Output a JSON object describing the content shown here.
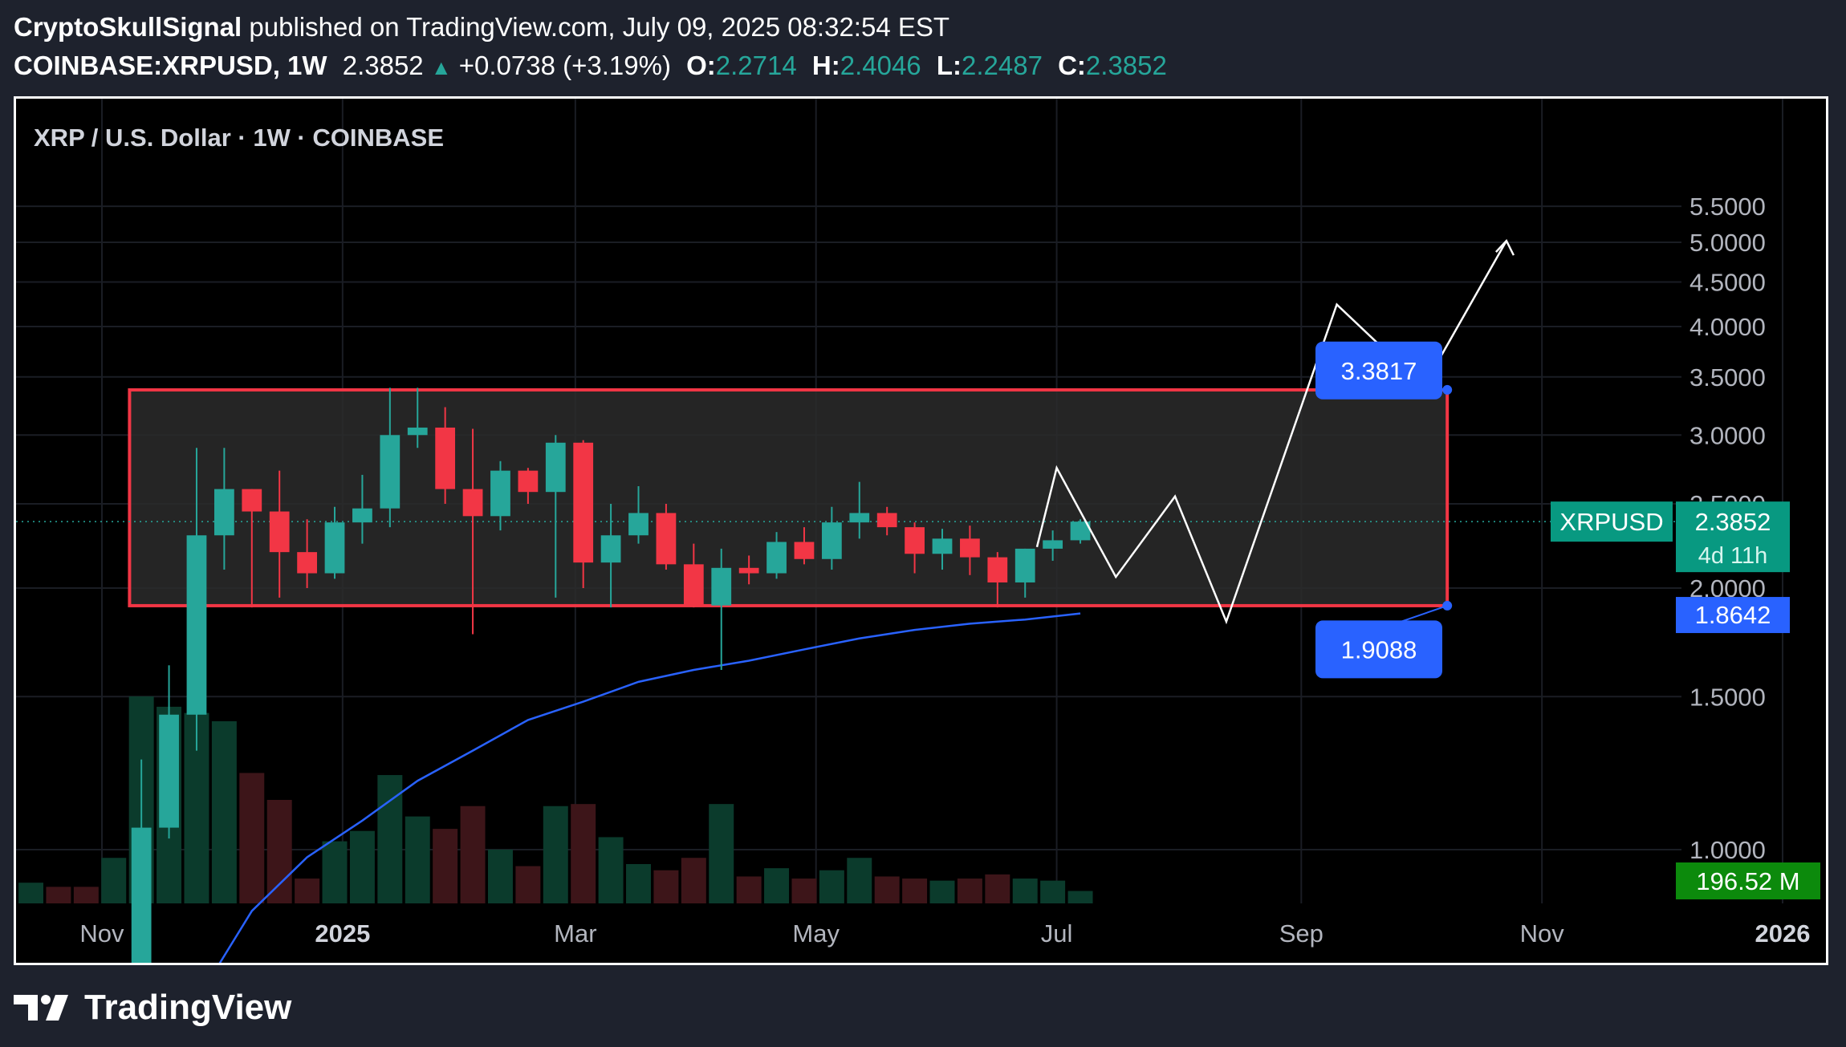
{
  "header": {
    "author": "CryptoSkullSignal",
    "published_text": "published on TradingView.com, July 09, 2025 08:32:54 EST",
    "symbol_interval": "COINBASE:XRPUSD, 1W",
    "last_price": "2.3852",
    "change_text": "+0.0738 (+3.19%)",
    "o_label": "O:",
    "o_value": "2.2714",
    "h_label": "H:",
    "h_value": "2.4046",
    "l_label": "L:",
    "l_value": "2.2487",
    "c_label": "C:",
    "c_value": "2.3852"
  },
  "footer": {
    "brand": "TradingView"
  },
  "chart_data": {
    "type": "candlestick",
    "title": "XRP / U.S. Dollar · 1W · COINBASE",
    "y_ticks": [
      "1.0000",
      "1.5000",
      "2.0000",
      "2.5000",
      "3.0000",
      "3.5000",
      "4.0000",
      "4.5000",
      "5.0000",
      "5.5000"
    ],
    "ylim": [
      0.67,
      5.8
    ],
    "x_ticks": [
      {
        "label": "Nov",
        "x": "2024-11-01",
        "bold": false
      },
      {
        "label": "2025",
        "x": "2025-01-01",
        "bold": true
      },
      {
        "label": "Mar",
        "x": "2025-03-01",
        "bold": false
      },
      {
        "label": "May",
        "x": "2025-05-01",
        "bold": false
      },
      {
        "label": "Jul",
        "x": "2025-07-01",
        "bold": false
      },
      {
        "label": "Sep",
        "x": "2025-09-01",
        "bold": false
      },
      {
        "label": "Nov",
        "x": "2025-11-01",
        "bold": false
      },
      {
        "label": "2026",
        "x": "2026-01-01",
        "bold": true
      }
    ],
    "xlim": [
      "2024-10-01",
      "2026-01-31"
    ],
    "colors": {
      "up": "#26a69a",
      "down": "#f23645",
      "ema": "#2962ff",
      "box_border": "#f23645",
      "box_fill": "#2b2b2b",
      "label_bg": "#2962ff",
      "projection": "#ffffff",
      "last_price_bg": "#089981",
      "volume_bg": "#0c8a0c"
    },
    "candles": [
      {
        "date": "2024-11-11",
        "o": 0.56,
        "h": 1.27,
        "l": 0.55,
        "c": 1.06
      },
      {
        "date": "2024-11-18",
        "o": 1.06,
        "h": 1.63,
        "l": 1.03,
        "c": 1.43
      },
      {
        "date": "2024-11-25",
        "o": 1.43,
        "h": 2.9,
        "l": 1.3,
        "c": 2.3
      },
      {
        "date": "2024-12-02",
        "o": 2.3,
        "h": 2.9,
        "l": 2.1,
        "c": 2.6
      },
      {
        "date": "2024-12-09",
        "o": 2.6,
        "h": 2.6,
        "l": 1.9,
        "c": 2.45
      },
      {
        "date": "2024-12-16",
        "o": 2.45,
        "h": 2.73,
        "l": 1.95,
        "c": 2.2
      },
      {
        "date": "2024-12-23",
        "o": 2.2,
        "h": 2.4,
        "l": 2.0,
        "c": 2.08
      },
      {
        "date": "2024-12-30",
        "o": 2.08,
        "h": 2.48,
        "l": 2.05,
        "c": 2.38
      },
      {
        "date": "2025-01-06",
        "o": 2.38,
        "h": 2.7,
        "l": 2.25,
        "c": 2.47
      },
      {
        "date": "2025-01-13",
        "o": 2.47,
        "h": 3.4,
        "l": 2.35,
        "c": 3.0
      },
      {
        "date": "2025-01-20",
        "o": 3.0,
        "h": 3.4,
        "l": 2.9,
        "c": 3.06
      },
      {
        "date": "2025-01-27",
        "o": 3.06,
        "h": 3.23,
        "l": 2.5,
        "c": 2.6
      },
      {
        "date": "2025-02-03",
        "o": 2.6,
        "h": 3.05,
        "l": 1.77,
        "c": 2.42
      },
      {
        "date": "2025-02-10",
        "o": 2.42,
        "h": 2.8,
        "l": 2.33,
        "c": 2.73
      },
      {
        "date": "2025-02-17",
        "o": 2.73,
        "h": 2.75,
        "l": 2.5,
        "c": 2.58
      },
      {
        "date": "2025-02-24",
        "o": 2.58,
        "h": 3.0,
        "l": 1.95,
        "c": 2.94
      },
      {
        "date": "2025-03-03",
        "o": 2.94,
        "h": 2.96,
        "l": 2.0,
        "c": 2.14
      },
      {
        "date": "2025-03-10",
        "o": 2.14,
        "h": 2.5,
        "l": 1.9,
        "c": 2.3
      },
      {
        "date": "2025-03-17",
        "o": 2.3,
        "h": 2.62,
        "l": 2.25,
        "c": 2.44
      },
      {
        "date": "2025-03-24",
        "o": 2.44,
        "h": 2.5,
        "l": 2.1,
        "c": 2.13
      },
      {
        "date": "2025-03-31",
        "o": 2.13,
        "h": 2.25,
        "l": 1.9,
        "c": 1.91
      },
      {
        "date": "2025-04-07",
        "o": 1.91,
        "h": 2.22,
        "l": 1.61,
        "c": 2.11
      },
      {
        "date": "2025-04-14",
        "o": 2.11,
        "h": 2.18,
        "l": 2.02,
        "c": 2.08
      },
      {
        "date": "2025-04-21",
        "o": 2.08,
        "h": 2.32,
        "l": 2.05,
        "c": 2.26
      },
      {
        "date": "2025-04-28",
        "o": 2.26,
        "h": 2.35,
        "l": 2.13,
        "c": 2.16
      },
      {
        "date": "2025-05-05",
        "o": 2.16,
        "h": 2.48,
        "l": 2.1,
        "c": 2.38
      },
      {
        "date": "2025-05-12",
        "o": 2.38,
        "h": 2.65,
        "l": 2.28,
        "c": 2.44
      },
      {
        "date": "2025-05-19",
        "o": 2.44,
        "h": 2.48,
        "l": 2.3,
        "c": 2.35
      },
      {
        "date": "2025-05-26",
        "o": 2.35,
        "h": 2.38,
        "l": 2.08,
        "c": 2.19
      },
      {
        "date": "2025-06-02",
        "o": 2.19,
        "h": 2.34,
        "l": 2.1,
        "c": 2.28
      },
      {
        "date": "2025-06-09",
        "o": 2.28,
        "h": 2.36,
        "l": 2.07,
        "c": 2.17
      },
      {
        "date": "2025-06-16",
        "o": 2.17,
        "h": 2.2,
        "l": 1.9,
        "c": 2.03
      },
      {
        "date": "2025-06-23",
        "o": 2.03,
        "h": 2.22,
        "l": 1.95,
        "c": 2.22
      },
      {
        "date": "2025-06-30",
        "o": 2.22,
        "h": 2.33,
        "l": 2.15,
        "c": 2.27
      },
      {
        "date": "2025-07-07",
        "o": 2.27,
        "h": 2.4,
        "l": 2.25,
        "c": 2.385
      }
    ],
    "volume": [
      {
        "date": "2024-10-14",
        "v": 0.1,
        "up": true
      },
      {
        "date": "2024-10-21",
        "v": 0.08,
        "up": false
      },
      {
        "date": "2024-10-28",
        "v": 0.08,
        "up": false
      },
      {
        "date": "2024-11-04",
        "v": 0.22,
        "up": true
      },
      {
        "date": "2024-11-11",
        "v": 1.0,
        "up": true
      },
      {
        "date": "2024-11-18",
        "v": 0.95,
        "up": true
      },
      {
        "date": "2024-11-25",
        "v": 0.92,
        "up": true
      },
      {
        "date": "2024-12-02",
        "v": 0.88,
        "up": true
      },
      {
        "date": "2024-12-09",
        "v": 0.63,
        "up": false
      },
      {
        "date": "2024-12-16",
        "v": 0.5,
        "up": false
      },
      {
        "date": "2024-12-23",
        "v": 0.12,
        "up": false
      },
      {
        "date": "2024-12-30",
        "v": 0.3,
        "up": true
      },
      {
        "date": "2025-01-06",
        "v": 0.35,
        "up": true
      },
      {
        "date": "2025-01-13",
        "v": 0.62,
        "up": true
      },
      {
        "date": "2025-01-20",
        "v": 0.42,
        "up": true
      },
      {
        "date": "2025-01-27",
        "v": 0.36,
        "up": false
      },
      {
        "date": "2025-02-03",
        "v": 0.47,
        "up": false
      },
      {
        "date": "2025-02-10",
        "v": 0.26,
        "up": true
      },
      {
        "date": "2025-02-17",
        "v": 0.18,
        "up": false
      },
      {
        "date": "2025-02-24",
        "v": 0.47,
        "up": true
      },
      {
        "date": "2025-03-03",
        "v": 0.48,
        "up": false
      },
      {
        "date": "2025-03-10",
        "v": 0.32,
        "up": true
      },
      {
        "date": "2025-03-17",
        "v": 0.19,
        "up": true
      },
      {
        "date": "2025-03-24",
        "v": 0.16,
        "up": false
      },
      {
        "date": "2025-03-31",
        "v": 0.22,
        "up": false
      },
      {
        "date": "2025-04-07",
        "v": 0.48,
        "up": true
      },
      {
        "date": "2025-04-14",
        "v": 0.13,
        "up": false
      },
      {
        "date": "2025-04-21",
        "v": 0.17,
        "up": true
      },
      {
        "date": "2025-04-28",
        "v": 0.12,
        "up": false
      },
      {
        "date": "2025-05-05",
        "v": 0.16,
        "up": true
      },
      {
        "date": "2025-05-12",
        "v": 0.22,
        "up": true
      },
      {
        "date": "2025-05-19",
        "v": 0.13,
        "up": false
      },
      {
        "date": "2025-05-26",
        "v": 0.12,
        "up": false
      },
      {
        "date": "2025-06-02",
        "v": 0.11,
        "up": true
      },
      {
        "date": "2025-06-09",
        "v": 0.12,
        "up": false
      },
      {
        "date": "2025-06-16",
        "v": 0.14,
        "up": false
      },
      {
        "date": "2025-06-23",
        "v": 0.12,
        "up": true
      },
      {
        "date": "2025-06-30",
        "v": 0.11,
        "up": true
      },
      {
        "date": "2025-07-07",
        "v": 0.06,
        "up": true
      }
    ],
    "ema_line": [
      {
        "date": "2024-11-25",
        "y": 0.67
      },
      {
        "date": "2024-12-09",
        "y": 0.85
      },
      {
        "date": "2024-12-23",
        "y": 0.98
      },
      {
        "date": "2025-01-06",
        "y": 1.08
      },
      {
        "date": "2025-01-20",
        "y": 1.2
      },
      {
        "date": "2025-02-03",
        "y": 1.3
      },
      {
        "date": "2025-02-17",
        "y": 1.41
      },
      {
        "date": "2025-03-03",
        "y": 1.48
      },
      {
        "date": "2025-03-17",
        "y": 1.56
      },
      {
        "date": "2025-03-31",
        "y": 1.61
      },
      {
        "date": "2025-04-14",
        "y": 1.65
      },
      {
        "date": "2025-04-28",
        "y": 1.7
      },
      {
        "date": "2025-05-12",
        "y": 1.75
      },
      {
        "date": "2025-05-26",
        "y": 1.79
      },
      {
        "date": "2025-06-09",
        "y": 1.82
      },
      {
        "date": "2025-06-23",
        "y": 1.84
      },
      {
        "date": "2025-07-07",
        "y": 1.87
      }
    ],
    "range_box": {
      "x0": "2024-11-08",
      "x1": "2025-10-08",
      "top": 3.3817,
      "bottom": 1.9088
    },
    "range_labels": [
      {
        "text": "3.3817",
        "y": 3.3817,
        "anchor": "2025-10-08",
        "label_y": 3.56
      },
      {
        "text": "1.9088",
        "y": 1.9088,
        "anchor": "2025-10-08",
        "label_y": 1.7
      }
    ],
    "projection_1": [
      {
        "date": "2025-06-26",
        "y": 2.23
      },
      {
        "date": "2025-07-01",
        "y": 2.75
      },
      {
        "date": "2025-07-16",
        "y": 2.06
      },
      {
        "date": "2025-07-31",
        "y": 2.55
      },
      {
        "date": "2025-08-13",
        "y": 1.83
      },
      {
        "date": "2025-09-10",
        "y": 4.24
      },
      {
        "date": "2025-10-02",
        "y": 3.41
      },
      {
        "date": "2025-10-23",
        "y": 5.02
      }
    ],
    "projection_arrow_tip": {
      "date": "2025-10-23",
      "y": 5.02
    },
    "current_price_line": 2.3852,
    "price_tag": {
      "symbol": "XRPUSD",
      "price": "2.3852",
      "countdown": "4d 11h"
    },
    "ema_tag": "1.8642",
    "volume_tag": "196.52 M",
    "current_price_value": 2.3852
  }
}
